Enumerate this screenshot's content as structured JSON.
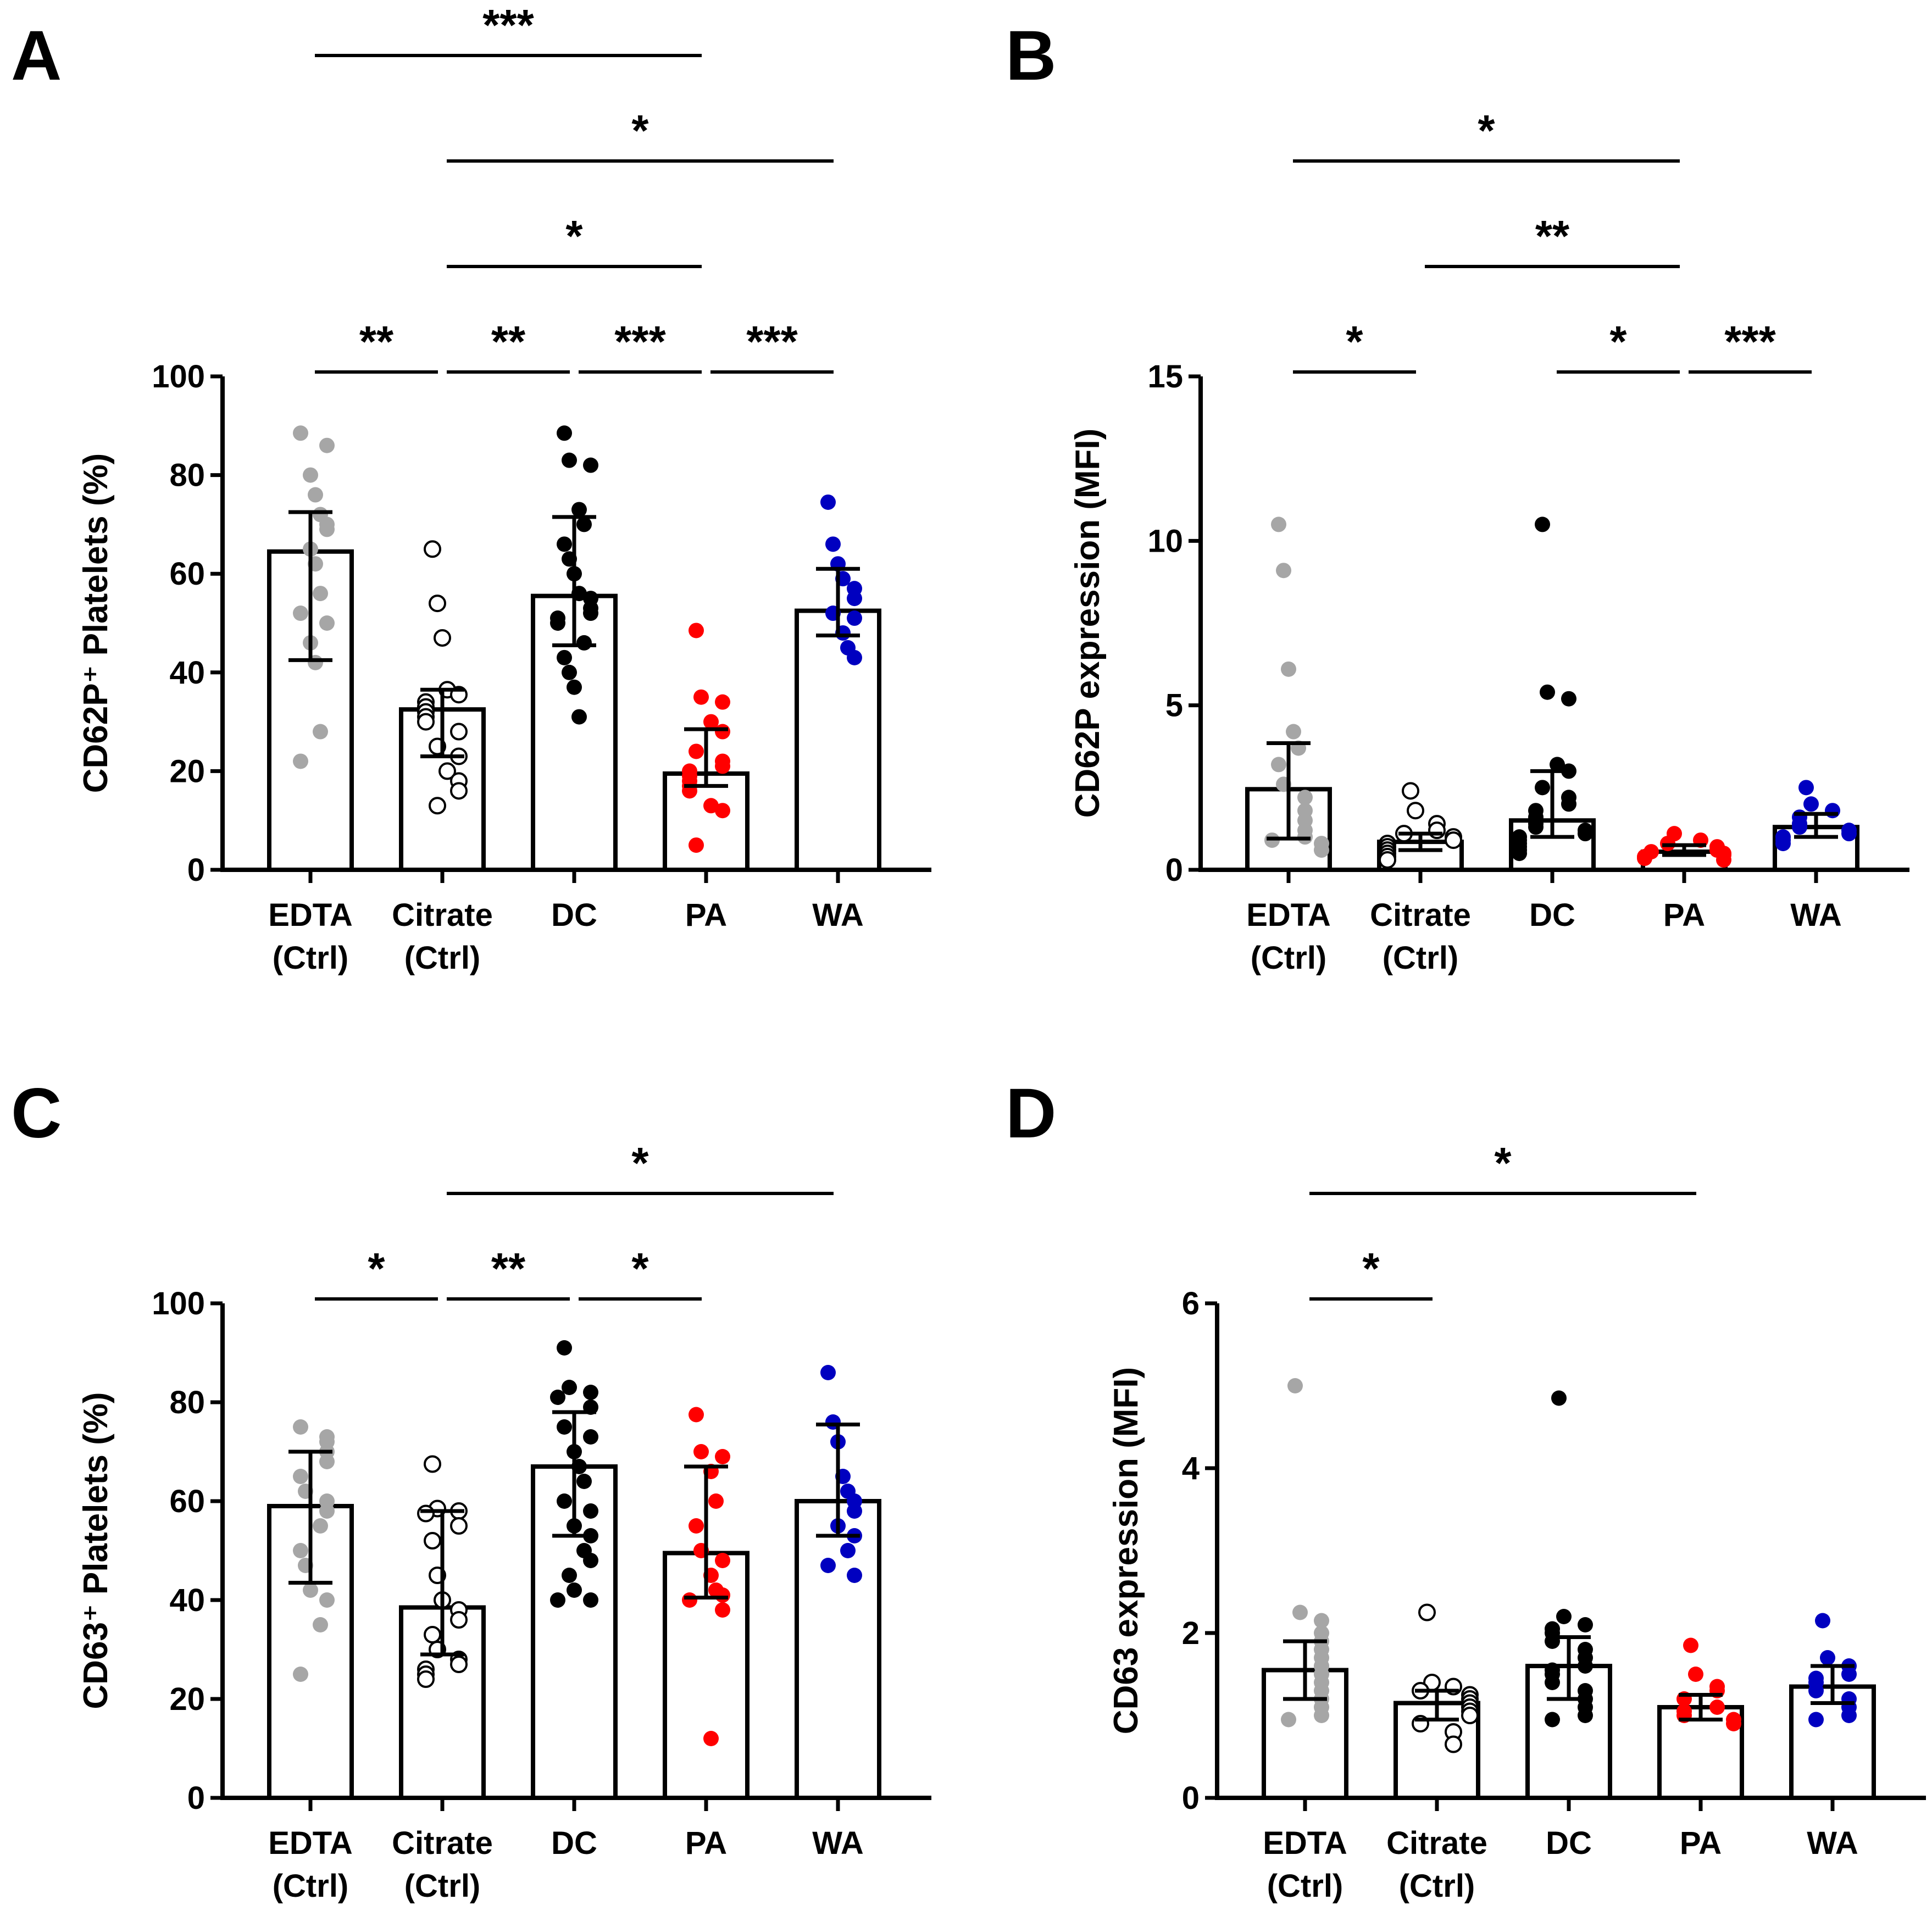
{
  "colors": {
    "EDTA": "#a6a6a6",
    "Citrate": "#ffffff",
    "DC": "#000000",
    "PA": "#ff0000",
    "WA": "#0000c0"
  },
  "chart_data": [
    {
      "panel": "A",
      "type": "bar",
      "ylabel": "CD62P⁺ Platelets (%)",
      "ylim": [
        0,
        100
      ],
      "yticks": [
        0,
        20,
        40,
        60,
        80,
        100
      ],
      "categories": [
        {
          "key": "EDTA",
          "label1": "EDTA",
          "label2": "(Ctrl)",
          "mean": 64.5,
          "err_low": 42.5,
          "err_high": 72.5,
          "points": [
            88.5,
            86,
            80,
            76,
            72,
            70,
            69,
            65,
            62,
            56,
            52,
            50,
            46,
            42,
            28,
            22
          ]
        },
        {
          "key": "Citrate",
          "label1": "Citrate",
          "label2": "(Ctrl)",
          "mean": 32.5,
          "err_low": 23,
          "err_high": 36.5,
          "points": [
            65,
            54,
            47,
            36.5,
            35.5,
            34,
            33,
            32,
            31,
            30,
            28,
            25,
            23,
            20,
            18,
            16,
            13
          ]
        },
        {
          "key": "DC",
          "label1": "DC",
          "label2": "",
          "mean": 55.5,
          "err_low": 45.5,
          "err_high": 71.5,
          "points": [
            88.5,
            83,
            82,
            73,
            70,
            66,
            63,
            60,
            56,
            55,
            53,
            52,
            51,
            50,
            46,
            43,
            40,
            37,
            31
          ]
        },
        {
          "key": "PA",
          "label1": "PA",
          "label2": "",
          "mean": 19.5,
          "err_low": 17,
          "err_high": 28.5,
          "points": [
            48.5,
            35,
            34,
            30,
            28,
            24,
            22,
            21,
            20,
            19,
            18,
            17,
            16,
            13,
            12,
            5
          ]
        },
        {
          "key": "WA",
          "label1": "WA",
          "label2": "",
          "mean": 52.5,
          "err_low": 47.5,
          "err_high": 61,
          "points": [
            74.5,
            66,
            62,
            59,
            57,
            55,
            52,
            51,
            48,
            45,
            43
          ]
        }
      ],
      "significance": [
        {
          "from": "Citrate",
          "to": "WA",
          "label": "*"
        },
        {
          "from": "EDTA",
          "to": "PA",
          "label": "***"
        },
        {
          "from": "Citrate",
          "to": "PA",
          "label": "*"
        },
        {
          "from": "PA",
          "to": "WA",
          "label": "***"
        },
        {
          "from": "EDTA",
          "to": "Citrate",
          "label": "**"
        },
        {
          "from": "Citrate",
          "to": "DC",
          "label": "**"
        },
        {
          "from": "DC",
          "to": "PA",
          "label": "***"
        }
      ]
    },
    {
      "panel": "B",
      "type": "bar",
      "ylabel": "CD62P expression (MFI)",
      "ylim": [
        0,
        15
      ],
      "yticks": [
        0,
        5,
        10,
        15
      ],
      "categories": [
        {
          "key": "EDTA",
          "label1": "EDTA",
          "label2": "(Ctrl)",
          "mean": 2.45,
          "err_low": 0.95,
          "err_high": 3.85,
          "points": [
            10.5,
            9.1,
            6.1,
            4.2,
            3.7,
            3.2,
            2.6,
            2.2,
            1.8,
            1.5,
            1.2,
            1.0,
            0.9,
            0.8,
            0.6
          ]
        },
        {
          "key": "Citrate",
          "label1": "Citrate",
          "label2": "(Ctrl)",
          "mean": 0.85,
          "err_low": 0.6,
          "err_high": 1.1,
          "points": [
            2.4,
            1.8,
            1.4,
            1.2,
            1.1,
            1.0,
            0.9,
            0.8,
            0.7,
            0.6,
            0.5,
            0.4,
            0.3
          ]
        },
        {
          "key": "DC",
          "label1": "DC",
          "label2": "",
          "mean": 1.5,
          "err_low": 1.0,
          "err_high": 3.0,
          "points": [
            10.5,
            5.4,
            5.2,
            3.2,
            3.0,
            2.5,
            2.2,
            2.0,
            1.8,
            1.6,
            1.4,
            1.3,
            1.2,
            1.1,
            1.0,
            0.9,
            0.8,
            0.7,
            0.6,
            0.5
          ]
        },
        {
          "key": "PA",
          "label1": "PA",
          "label2": "",
          "mean": 0.55,
          "err_low": 0.45,
          "err_high": 0.75,
          "points": [
            1.1,
            0.9,
            0.8,
            0.7,
            0.6,
            0.55,
            0.5,
            0.45,
            0.4,
            0.35,
            0.3
          ]
        },
        {
          "key": "WA",
          "label1": "WA",
          "label2": "",
          "mean": 1.3,
          "err_low": 1.0,
          "err_high": 1.7,
          "points": [
            2.5,
            2.0,
            1.8,
            1.6,
            1.4,
            1.3,
            1.2,
            1.1,
            1.0,
            0.9,
            0.8
          ]
        }
      ],
      "significance": [
        {
          "from": "EDTA",
          "to": "PA",
          "label": "*"
        },
        {
          "from": "Citrate",
          "to": "PA",
          "label": "**"
        },
        {
          "from": "EDTA",
          "to": "Citrate",
          "label": "*"
        },
        {
          "from": "DC",
          "to": "PA",
          "label": "*"
        },
        {
          "from": "PA",
          "to": "WA",
          "label": "***"
        }
      ]
    },
    {
      "panel": "C",
      "type": "bar",
      "ylabel": "CD63⁺ Platelets (%)",
      "ylim": [
        0,
        100
      ],
      "yticks": [
        0,
        20,
        40,
        60,
        80,
        100
      ],
      "categories": [
        {
          "key": "EDTA",
          "label1": "EDTA",
          "label2": "(Ctrl)",
          "mean": 59,
          "err_low": 43.5,
          "err_high": 70,
          "points": [
            75,
            73,
            72,
            70,
            68,
            65,
            62,
            60,
            58,
            55,
            50,
            47,
            42,
            40,
            35,
            25
          ]
        },
        {
          "key": "Citrate",
          "label1": "Citrate",
          "label2": "(Ctrl)",
          "mean": 38.5,
          "err_low": 29,
          "err_high": 58,
          "points": [
            67.5,
            58.5,
            58,
            57.5,
            55,
            52,
            45,
            40,
            38,
            36,
            33,
            30,
            28,
            27,
            26,
            25,
            24
          ]
        },
        {
          "key": "DC",
          "label1": "DC",
          "label2": "",
          "mean": 67,
          "err_low": 53,
          "err_high": 78,
          "points": [
            91,
            83,
            82,
            81,
            79,
            75,
            73,
            70,
            67,
            64,
            60,
            58,
            55,
            53,
            50,
            48,
            45,
            42,
            40,
            40
          ]
        },
        {
          "key": "PA",
          "label1": "PA",
          "label2": "",
          "mean": 49.5,
          "err_low": 40.5,
          "err_high": 67,
          "points": [
            77.5,
            70,
            69,
            66,
            60,
            55,
            50,
            48,
            45,
            42,
            41,
            40,
            38,
            12
          ]
        },
        {
          "key": "WA",
          "label1": "WA",
          "label2": "",
          "mean": 60,
          "err_low": 53,
          "err_high": 75.5,
          "points": [
            86,
            76,
            72,
            65,
            62,
            60,
            58,
            55,
            53,
            50,
            47,
            45
          ]
        }
      ],
      "significance": [
        {
          "from": "Citrate",
          "to": "WA",
          "label": "*"
        },
        {
          "from": "EDTA",
          "to": "Citrate",
          "label": "*"
        },
        {
          "from": "Citrate",
          "to": "DC",
          "label": "**"
        },
        {
          "from": "DC",
          "to": "PA",
          "label": "*"
        }
      ]
    },
    {
      "panel": "D",
      "type": "bar",
      "ylabel": "CD63 expression (MFI)",
      "ylim": [
        0,
        6
      ],
      "yticks": [
        0,
        2,
        4,
        6
      ],
      "categories": [
        {
          "key": "EDTA",
          "label1": "EDTA",
          "label2": "(Ctrl)",
          "mean": 1.55,
          "err_low": 1.2,
          "err_high": 1.9,
          "points": [
            5.0,
            2.25,
            2.15,
            2.0,
            1.9,
            1.8,
            1.7,
            1.6,
            1.5,
            1.4,
            1.3,
            1.2,
            1.1,
            1.0,
            0.95
          ]
        },
        {
          "key": "Citrate",
          "label1": "Citrate",
          "label2": "(Ctrl)",
          "mean": 1.15,
          "err_low": 0.95,
          "err_high": 1.3,
          "points": [
            2.25,
            1.4,
            1.35,
            1.3,
            1.25,
            1.2,
            1.15,
            1.1,
            1.05,
            1.0,
            0.9,
            0.8,
            0.65
          ]
        },
        {
          "key": "DC",
          "label1": "DC",
          "label2": "",
          "mean": 1.6,
          "err_low": 1.2,
          "err_high": 1.95,
          "points": [
            4.85,
            2.2,
            2.1,
            2.05,
            2.0,
            1.9,
            1.8,
            1.7,
            1.6,
            1.55,
            1.5,
            1.4,
            1.3,
            1.2,
            1.1,
            1.0,
            0.95
          ]
        },
        {
          "key": "PA",
          "label1": "PA",
          "label2": "",
          "mean": 1.1,
          "err_low": 0.95,
          "err_high": 1.25,
          "points": [
            1.85,
            1.5,
            1.35,
            1.3,
            1.2,
            1.1,
            1.05,
            1.0,
            0.95,
            0.9
          ]
        },
        {
          "key": "WA",
          "label1": "WA",
          "label2": "",
          "mean": 1.35,
          "err_low": 1.15,
          "err_high": 1.6,
          "points": [
            2.15,
            1.7,
            1.6,
            1.5,
            1.45,
            1.4,
            1.3,
            1.2,
            1.1,
            1.0,
            0.95
          ]
        }
      ],
      "significance": [
        {
          "from": "EDTA",
          "to": "PA",
          "label": "*"
        },
        {
          "from": "EDTA",
          "to": "Citrate",
          "label": "*"
        }
      ]
    }
  ]
}
